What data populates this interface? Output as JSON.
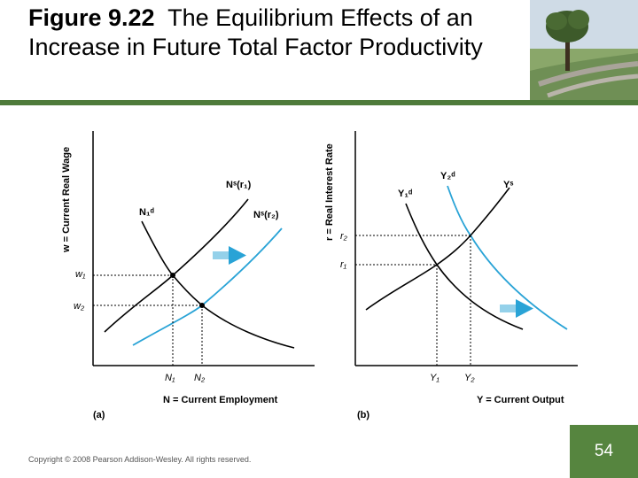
{
  "title": {
    "figure_number": "Figure 9.22",
    "text": "The Equilibrium Effects of an Increase in Future Total Factor Productivity"
  },
  "panel_a": {
    "label": "(a)",
    "y_axis_title": "w = Current Real Wage",
    "x_axis_title": "N = Current Employment",
    "supply_old": "Nˢ(r₁)",
    "supply_new": "Nˢ(r₂)",
    "demand": "N₁ᵈ",
    "w1": "w₁",
    "w2": "w₂",
    "n1": "N₁",
    "n2": "N₂"
  },
  "panel_b": {
    "label": "(b)",
    "y_axis_title": "r = Real Interest Rate",
    "x_axis_title": "Y = Current Output",
    "demand_old": "Y₁ᵈ",
    "demand_new": "Y₂ᵈ",
    "supply": "Yˢ",
    "r1": "r₁",
    "r2": "r₂",
    "y1": "Y₁",
    "y2": "Y₂"
  },
  "colors": {
    "accent_blue": "#29a3d6",
    "green": "#56853f"
  },
  "footer": {
    "copyright": "Copyright © 2008 Pearson Addison-Wesley. All rights reserved.",
    "page_number": "54"
  }
}
